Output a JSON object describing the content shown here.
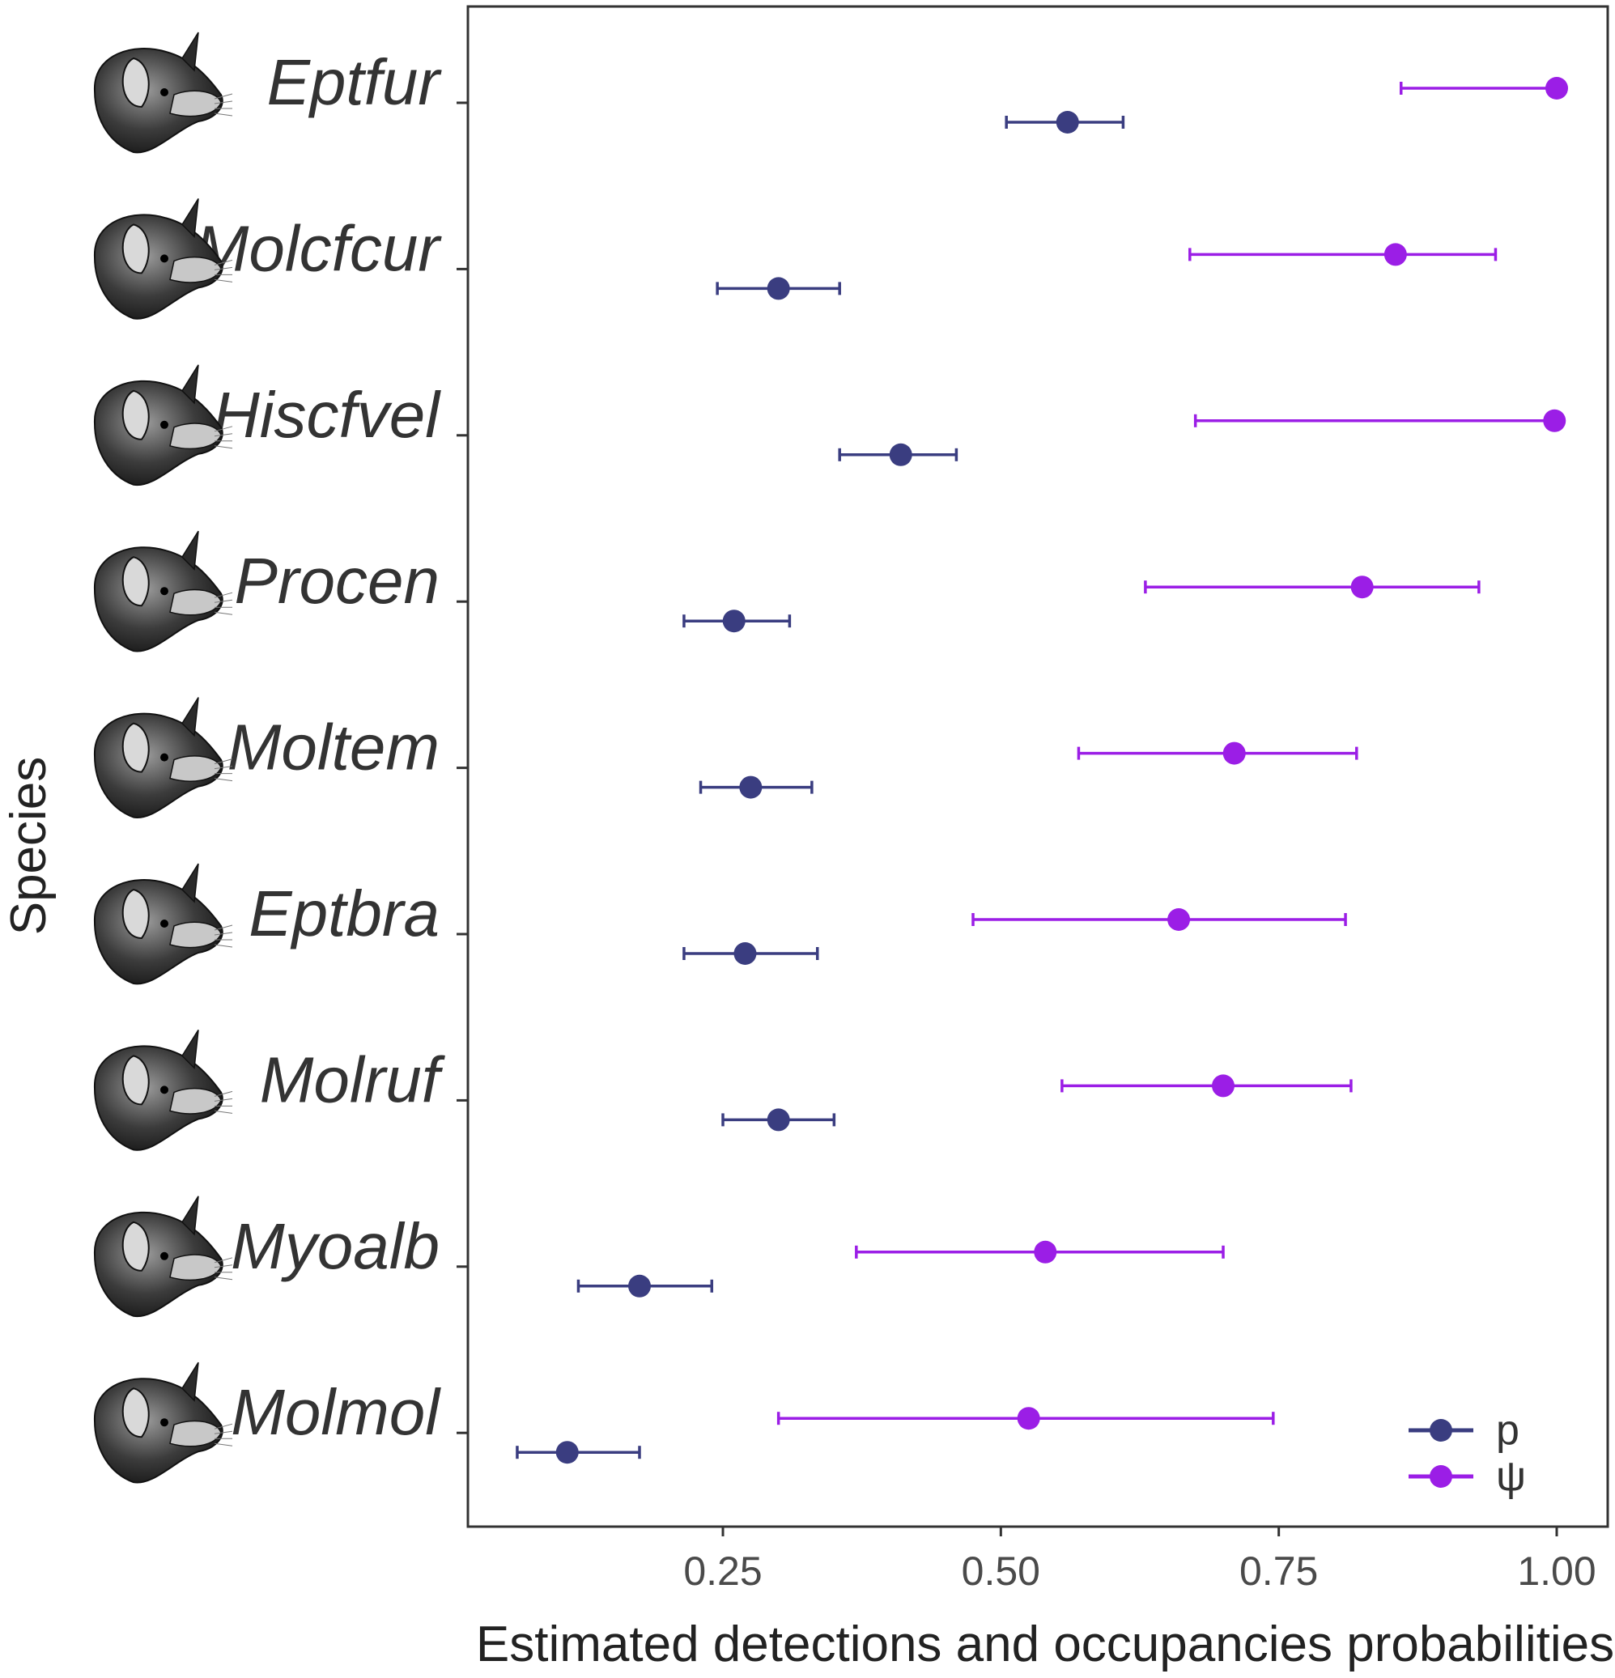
{
  "chart_data": {
    "type": "errorbar",
    "title": "",
    "xlabel": "Estimated detections and occupancies probabilities",
    "ylabel": "Species",
    "xlim": [
      0.02,
      1.05
    ],
    "xticks": [
      0.25,
      0.5,
      0.75,
      1.0
    ],
    "xtick_labels": [
      "0.25",
      "0.50",
      "0.75",
      "1.00"
    ],
    "categories": [
      "Eptfur",
      "Molcfcur",
      "Hiscfvel",
      "Procen",
      "Moltem",
      "Eptbra",
      "Molruf",
      "Myoalb",
      "Molmol"
    ],
    "legend_position": "bottom-right",
    "series": [
      {
        "name": "p",
        "color": "#3a3d80",
        "estimates": [
          0.56,
          0.3,
          0.41,
          0.26,
          0.275,
          0.27,
          0.3,
          0.175,
          0.11
        ],
        "lower": [
          0.505,
          0.245,
          0.355,
          0.215,
          0.23,
          0.215,
          0.25,
          0.12,
          0.065
        ],
        "upper": [
          0.61,
          0.355,
          0.46,
          0.31,
          0.33,
          0.335,
          0.35,
          0.24,
          0.175
        ]
      },
      {
        "name": "ψ",
        "color": "#9b1ee6",
        "estimates": [
          1.0,
          0.855,
          0.998,
          0.825,
          0.71,
          0.66,
          0.7,
          0.54,
          0.525
        ],
        "lower": [
          0.86,
          0.67,
          0.675,
          0.63,
          0.57,
          0.475,
          0.555,
          0.37,
          0.3
        ],
        "upper": [
          1.0,
          0.945,
          1.0,
          0.93,
          0.82,
          0.81,
          0.815,
          0.7,
          0.745
        ]
      }
    ]
  }
}
